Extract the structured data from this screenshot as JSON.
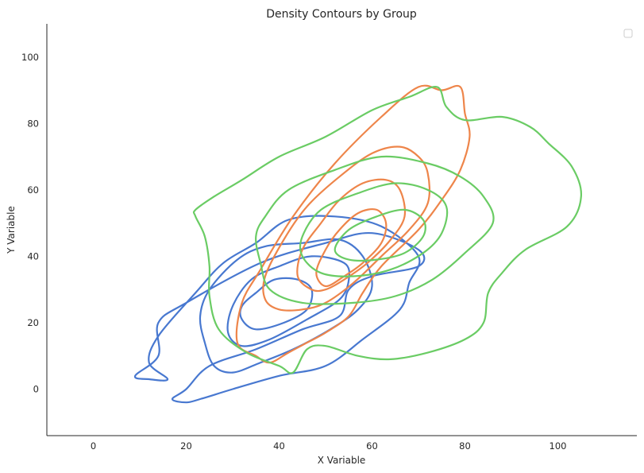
{
  "chart_data": {
    "type": "contour",
    "title": "Density Contours by Group",
    "xlabel": "X Variable",
    "ylabel": "Y Variable",
    "xlim": [
      -10,
      117
    ],
    "ylim": [
      -14,
      110
    ],
    "xticks": [
      0,
      20,
      40,
      60,
      80,
      100
    ],
    "yticks": [
      0,
      20,
      40,
      60,
      80,
      100
    ],
    "grid": false,
    "legend": {
      "location": "upper right",
      "entries": []
    },
    "series": [
      {
        "color": "#4878d0",
        "levels": [
          [
            [
              9,
              4
            ],
            [
              14,
              10
            ],
            [
              14,
              20
            ],
            [
              20,
              26
            ],
            [
              36,
              38
            ],
            [
              50,
              44
            ],
            [
              60,
              47
            ],
            [
              70,
              42
            ],
            [
              70,
              37
            ],
            [
              60,
              34
            ],
            [
              55,
              30
            ],
            [
              53,
              22
            ],
            [
              45,
              18
            ],
            [
              35,
              12
            ],
            [
              25,
              7
            ],
            [
              20,
              0
            ],
            [
              17,
              -3
            ],
            [
              20,
              -4
            ],
            [
              23,
              -3
            ],
            [
              30,
              0
            ],
            [
              40,
              4
            ],
            [
              50,
              7
            ],
            [
              58,
              15
            ],
            [
              66,
              24
            ],
            [
              68,
              32
            ],
            [
              70,
              40
            ],
            [
              62,
              49
            ],
            [
              52,
              52
            ],
            [
              42,
              51
            ],
            [
              35,
              44
            ],
            [
              28,
              38
            ],
            [
              22,
              29
            ],
            [
              14,
              16
            ],
            [
              12,
              8
            ],
            [
              16,
              3
            ],
            [
              12,
              3
            ]
          ],
          [
            [
              26,
              7
            ],
            [
              30,
              5
            ],
            [
              36,
              8
            ],
            [
              43,
              12
            ],
            [
              51,
              18
            ],
            [
              57,
              24
            ],
            [
              60,
              31
            ],
            [
              58,
              40
            ],
            [
              53,
              45
            ],
            [
              45,
              44
            ],
            [
              37,
              43
            ],
            [
              31,
              39
            ],
            [
              25,
              30
            ],
            [
              23,
              22
            ],
            [
              24,
              14
            ]
          ],
          [
            [
              29,
              17
            ],
            [
              32,
              13
            ],
            [
              38,
              15
            ],
            [
              46,
              21
            ],
            [
              53,
              27
            ],
            [
              55,
              33
            ],
            [
              54,
              38
            ],
            [
              47,
              40
            ],
            [
              40,
              37
            ],
            [
              34,
              33
            ],
            [
              30,
              25
            ]
          ],
          [
            [
              32,
              21
            ],
            [
              35,
              18
            ],
            [
              41,
              20
            ],
            [
              46,
              24
            ],
            [
              47,
              30
            ],
            [
              44,
              33
            ],
            [
              39,
              33
            ],
            [
              35,
              29
            ],
            [
              32,
              25
            ]
          ]
        ]
      },
      {
        "color": "#ee854a",
        "levels": [
          [
            [
              35,
              10
            ],
            [
              31,
              14
            ],
            [
              32,
              26
            ],
            [
              36,
              36
            ],
            [
              43,
              52
            ],
            [
              52,
              68
            ],
            [
              62,
              82
            ],
            [
              70,
              91
            ],
            [
              75,
              90
            ],
            [
              79,
              91
            ],
            [
              80,
              83
            ],
            [
              81,
              76
            ],
            [
              79,
              66
            ],
            [
              75,
              57
            ],
            [
              70,
              48
            ],
            [
              62,
              37
            ],
            [
              58,
              29
            ],
            [
              55,
              22
            ],
            [
              50,
              17
            ],
            [
              46,
              14
            ],
            [
              42,
              11
            ],
            [
              38,
              8
            ]
          ],
          [
            [
              40,
              24
            ],
            [
              37,
              27
            ],
            [
              37,
              34
            ],
            [
              41,
              45
            ],
            [
              46,
              55
            ],
            [
              53,
              64
            ],
            [
              60,
              71
            ],
            [
              66,
              73
            ],
            [
              70,
              70
            ],
            [
              72,
              65
            ],
            [
              72,
              56
            ],
            [
              68,
              48
            ],
            [
              62,
              40
            ],
            [
              56,
              32
            ],
            [
              50,
              26
            ],
            [
              45,
              24
            ]
          ],
          [
            [
              47,
              30
            ],
            [
              44,
              34
            ],
            [
              45,
              42
            ],
            [
              49,
              50
            ],
            [
              53,
              57
            ],
            [
              58,
              62
            ],
            [
              63,
              63
            ],
            [
              66,
              60
            ],
            [
              67,
              52
            ],
            [
              64,
              45
            ],
            [
              59,
              38
            ],
            [
              54,
              33
            ],
            [
              50,
              30
            ]
          ],
          [
            [
              50,
              31
            ],
            [
              48,
              35
            ],
            [
              50,
              42
            ],
            [
              53,
              48
            ],
            [
              57,
              53
            ],
            [
              61,
              54
            ],
            [
              63,
              50
            ],
            [
              62,
              44
            ],
            [
              58,
              38
            ],
            [
              54,
              34
            ]
          ]
        ]
      },
      {
        "color": "#6acc64",
        "levels": [
          [
            [
              22,
              54
            ],
            [
              26,
              58
            ],
            [
              32,
              63
            ],
            [
              40,
              70
            ],
            [
              50,
              76
            ],
            [
              60,
              84
            ],
            [
              68,
              88
            ],
            [
              74,
              91
            ],
            [
              76,
              85
            ],
            [
              80,
              81
            ],
            [
              88,
              82
            ],
            [
              94,
              79
            ],
            [
              98,
              74
            ],
            [
              103,
              67
            ],
            [
              105,
              58
            ],
            [
              102,
              49
            ],
            [
              93,
              42
            ],
            [
              88,
              35
            ],
            [
              85,
              29
            ],
            [
              84,
              20
            ],
            [
              80,
              15
            ],
            [
              72,
              11
            ],
            [
              64,
              9
            ],
            [
              57,
              10
            ],
            [
              50,
              13
            ],
            [
              46,
              12
            ],
            [
              43,
              5
            ],
            [
              40,
              7
            ],
            [
              33,
              11
            ],
            [
              27,
              18
            ],
            [
              25,
              28
            ],
            [
              25,
              37
            ],
            [
              24,
              46
            ],
            [
              22,
              52
            ]
          ],
          [
            [
              37,
              52
            ],
            [
              42,
              60
            ],
            [
              52,
              66
            ],
            [
              62,
              70
            ],
            [
              72,
              68
            ],
            [
              79,
              64
            ],
            [
              84,
              58
            ],
            [
              86,
              50
            ],
            [
              80,
              41
            ],
            [
              73,
              33
            ],
            [
              65,
              28
            ],
            [
              56,
              26
            ],
            [
              45,
              26
            ],
            [
              38,
              30
            ],
            [
              36,
              38
            ],
            [
              35,
              46
            ]
          ],
          [
            [
              45,
              46
            ],
            [
              49,
              54
            ],
            [
              57,
              59
            ],
            [
              65,
              62
            ],
            [
              72,
              60
            ],
            [
              76,
              55
            ],
            [
              75,
              47
            ],
            [
              71,
              41
            ],
            [
              64,
              36
            ],
            [
              56,
              34
            ],
            [
              49,
              35
            ],
            [
              45,
              40
            ]
          ],
          [
            [
              52,
              42
            ],
            [
              55,
              48
            ],
            [
              61,
              52
            ],
            [
              67,
              54
            ],
            [
              71,
              51
            ],
            [
              71,
              46
            ],
            [
              67,
              41
            ],
            [
              61,
              39
            ],
            [
              55,
              39
            ]
          ]
        ]
      }
    ]
  }
}
